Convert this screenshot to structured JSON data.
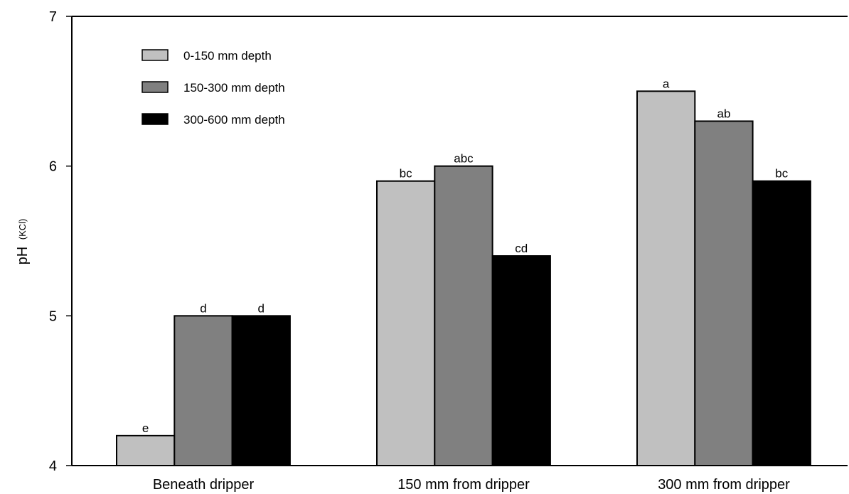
{
  "chart_data": {
    "type": "bar",
    "categories": [
      "Beneath dripper",
      "150 mm from dripper",
      "300 mm from dripper"
    ],
    "series": [
      {
        "name": "0-150 mm depth",
        "color": "#c0c0c0",
        "values": [
          4.2,
          5.9,
          6.5
        ],
        "labels": [
          "e",
          "bc",
          "a"
        ]
      },
      {
        "name": "150-300 mm depth",
        "color": "#808080",
        "values": [
          5.0,
          6.0,
          6.3
        ],
        "labels": [
          "d",
          "abc",
          "ab"
        ]
      },
      {
        "name": "300-600 mm depth",
        "color": "#000000",
        "values": [
          5.0,
          5.4,
          5.9
        ],
        "labels": [
          "d",
          "cd",
          "bc"
        ]
      }
    ],
    "ylabel": "pH",
    "ylabel_subscript": "(KCl)",
    "xlabel": "",
    "ylim": [
      4,
      7
    ],
    "yticks": [
      "4",
      "5",
      "6",
      "7"
    ],
    "grid": false,
    "legend_position": "top-left"
  }
}
